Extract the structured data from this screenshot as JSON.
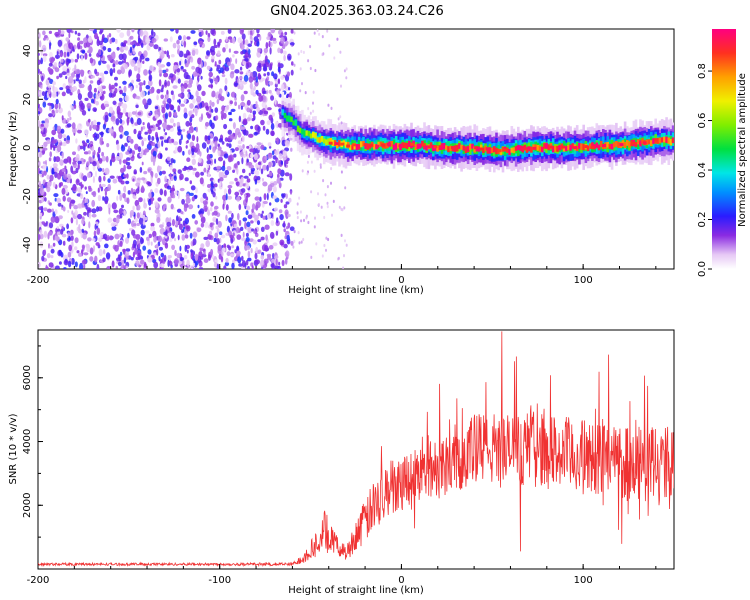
{
  "figure_title": "GN04.2025.363.03.24.C26",
  "chart_data": [
    {
      "type": "heatmap",
      "xlabel": "Height of straight line (km)",
      "ylabel": "Frequency (Hz)",
      "xlim": [
        -200,
        150
      ],
      "ylim": [
        -50,
        49
      ],
      "xticks": [
        -200,
        -100,
        0,
        100
      ],
      "yticks": [
        -40,
        -20,
        0,
        20,
        40
      ],
      "colorbar": {
        "label": "Normalized spectral amplitude",
        "range": [
          0,
          0.97
        ],
        "ticks": [
          "0.0",
          "0.2",
          "0.4",
          "0.6",
          "0.8"
        ]
      },
      "noise_region": {
        "x": [
          -200,
          -60
        ],
        "typical_amplitude": 0.15
      },
      "ridge_x": [
        -66,
        -60,
        -55,
        -50,
        -45,
        -40,
        -30,
        -20,
        -10,
        0,
        10,
        20,
        30,
        40,
        50,
        60,
        70,
        80,
        90,
        100,
        110,
        120,
        130,
        140,
        150
      ],
      "ridge_frequency": [
        14,
        11,
        6,
        5,
        3,
        2,
        1,
        1,
        1,
        1,
        1,
        0,
        0,
        0,
        -1,
        -1,
        0,
        0,
        0,
        0,
        1,
        1,
        2,
        3,
        3
      ],
      "ridge_amplitude": [
        0.45,
        0.5,
        0.55,
        0.6,
        0.7,
        0.75,
        0.85,
        0.9,
        0.9,
        0.95,
        0.95,
        0.95,
        0.95,
        0.9,
        0.9,
        0.9,
        0.92,
        0.95,
        0.92,
        0.9,
        0.9,
        0.92,
        0.9,
        0.9,
        0.88
      ]
    },
    {
      "type": "line",
      "xlabel": "Height of straight line (km)",
      "ylabel": "SNR (10 * v/v)",
      "xlim": [
        -200,
        150
      ],
      "ylim": [
        0,
        7500
      ],
      "xticks": [
        -200,
        -100,
        0,
        100
      ],
      "yticks": [
        2000,
        4000,
        6000
      ],
      "color": "#f03232",
      "envelope": {
        "x": [
          -200,
          -100,
          -60,
          -55,
          -50,
          -45,
          -42,
          -40,
          -35,
          -30,
          -25,
          -20,
          -15,
          -10,
          0,
          10,
          20,
          30,
          40,
          50,
          60,
          70,
          80,
          90,
          100,
          110,
          120,
          130,
          140,
          150
        ],
        "mean": [
          150,
          150,
          150,
          300,
          600,
          900,
          1200,
          1000,
          700,
          500,
          1100,
          1500,
          2000,
          2400,
          2800,
          3000,
          3200,
          3500,
          3700,
          3800,
          3700,
          3800,
          3700,
          3600,
          3500,
          3500,
          3400,
          3400,
          3300,
          3300
        ],
        "spread": [
          40,
          40,
          50,
          150,
          300,
          500,
          700,
          500,
          300,
          250,
          500,
          700,
          800,
          900,
          900,
          900,
          1000,
          1100,
          1200,
          1200,
          1200,
          1200,
          1200,
          1200,
          1200,
          1200,
          1300,
          1300,
          1200,
          1200
        ]
      }
    }
  ]
}
